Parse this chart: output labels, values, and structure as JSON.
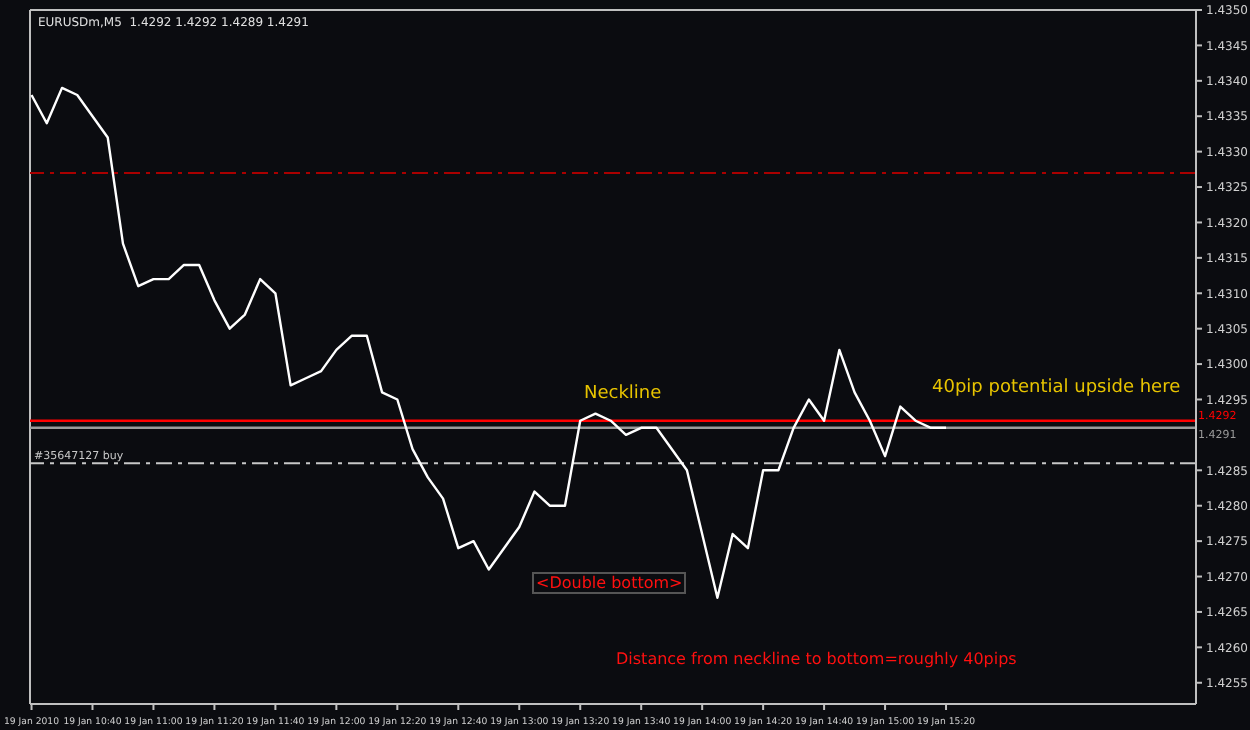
{
  "chart_data": {
    "type": "line",
    "title": "EURUSDm,M5  1.4292 1.4292 1.4289 1.4291",
    "categories": [
      "19 Jan 2010",
      null,
      null,
      null,
      "19 Jan 10:40",
      null,
      null,
      null,
      "19 Jan 11:00",
      null,
      null,
      null,
      "19 Jan 11:20",
      null,
      null,
      null,
      "19 Jan 11:40",
      null,
      null,
      null,
      "19 Jan 12:00",
      null,
      null,
      null,
      "19 Jan 12:20",
      null,
      null,
      null,
      "19 Jan 12:40",
      null,
      null,
      null,
      "19 Jan 13:00",
      null,
      null,
      null,
      "19 Jan 13:20",
      null,
      null,
      null,
      "19 Jan 13:40",
      null,
      null,
      null,
      "19 Jan 14:00",
      null,
      null,
      null,
      "19 Jan 14:20",
      null,
      null,
      null,
      "19 Jan 14:40",
      null,
      null,
      null,
      "19 Jan 15:00",
      null,
      null,
      null,
      "19 Jan 15:20",
      null,
      null,
      null,
      null,
      null,
      null,
      null,
      null,
      null,
      null,
      null,
      null,
      null,
      null,
      null,
      null
    ],
    "series": [
      {
        "color": "#ffffff",
        "values": [
          1.4338,
          1.4334,
          1.4339,
          1.4338,
          1.4335,
          1.4332,
          1.4317,
          1.4311,
          1.4312,
          1.4312,
          1.4314,
          1.4314,
          1.4309,
          1.4305,
          1.4307,
          1.4312,
          1.431,
          1.4297,
          1.4298,
          1.4299,
          1.4302,
          1.4304,
          1.4304,
          1.4296,
          1.4295,
          1.4288,
          1.4284,
          1.4281,
          1.4274,
          1.4275,
          1.4271,
          1.4274,
          1.4277,
          1.4282,
          1.428,
          1.428,
          1.4292,
          1.4293,
          1.4292,
          1.429,
          1.4291,
          1.4291,
          1.4288,
          1.4285,
          1.4276,
          1.4267,
          1.4276,
          1.4274,
          1.4285,
          1.4285,
          1.4291,
          1.4295,
          1.4292,
          1.4302,
          1.4296,
          1.4292,
          1.4287,
          1.4294,
          1.4292,
          1.4291,
          1.4291,
          null,
          null,
          null,
          null,
          null,
          null,
          null,
          null,
          null,
          null,
          null,
          null,
          null,
          null,
          null,
          null
        ]
      }
    ],
    "ylim": [
      1.4252,
      1.435
    ],
    "yticks": [
      {
        "value": 1.4255,
        "label": "1.4255"
      },
      {
        "value": 1.426,
        "label": "1.4260"
      },
      {
        "value": 1.4265,
        "label": "1.4265"
      },
      {
        "value": 1.427,
        "label": "1.4270"
      },
      {
        "value": 1.4275,
        "label": "1.4275"
      },
      {
        "value": 1.428,
        "label": "1.4280"
      },
      {
        "value": 1.4285,
        "label": "1.4285"
      },
      {
        "value": 1.4295,
        "label": "1.4295"
      },
      {
        "value": 1.43,
        "label": "1.4300"
      },
      {
        "value": 1.4305,
        "label": "1.4305"
      },
      {
        "value": 1.431,
        "label": "1.4310"
      },
      {
        "value": 1.4315,
        "label": "1.4315"
      },
      {
        "value": 1.432,
        "label": "1.4320"
      },
      {
        "value": 1.4325,
        "label": "1.4325"
      },
      {
        "value": 1.433,
        "label": "1.4330"
      },
      {
        "value": 1.4335,
        "label": "1.4335"
      },
      {
        "value": 1.434,
        "label": "1.4340"
      },
      {
        "value": 1.4345,
        "label": "1.4345"
      },
      {
        "value": 1.435,
        "label": "1.4350"
      }
    ],
    "ref_lines": [
      {
        "axis": "y",
        "value": 1.4327,
        "color": "#aa0000",
        "line_style": "dashed"
      },
      {
        "axis": "y",
        "value": 1.4292,
        "label": "1.4292",
        "color": "#ff0000",
        "line_style": "solid"
      },
      {
        "axis": "y",
        "value": 1.4291,
        "label": "1.4291",
        "color": "#9a9a9a",
        "line_style": "solid"
      },
      {
        "axis": "y",
        "value": 1.4286,
        "label": "#35647127 buy",
        "color": "#c8c8c8",
        "line_style": "dashed"
      }
    ],
    "annotations": [
      "Neckline",
      "40pip potential upside here",
      "<Double bottom>",
      "Distance from neckline to bottom=roughly 40pips"
    ],
    "grid": false,
    "legend": false,
    "marker": "none",
    "line_style": "solid"
  }
}
